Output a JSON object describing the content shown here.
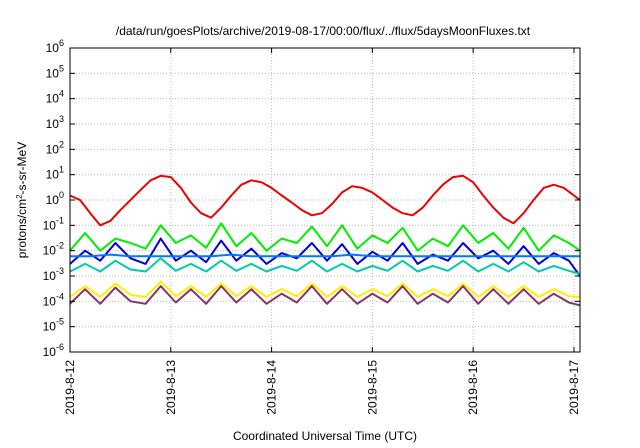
{
  "chart_data": {
    "type": "line",
    "title": "/data/run/goesPlots/archive/2019-08-17/00:00/flux/../flux/5daysMoonFluxes.txt",
    "xlabel": "Coordinated Universal Time (UTC)",
    "ylabel": {
      "prefix": "protons/cm",
      "sup": "2",
      "suffix": "-s-sr-MeV"
    },
    "yscale": "log",
    "ylim": [
      1e-06,
      1000000.0
    ],
    "xlim": [
      "2019-8-12",
      "2019-8-17"
    ],
    "grid": true,
    "x_ticks": [
      "2019-8-12",
      "2019-8-13",
      "2019-8-14",
      "2019-8-15",
      "2019-8-16",
      "2019-8-17"
    ],
    "y_ticks": [
      {
        "base": "10",
        "exp": "-6"
      },
      {
        "base": "10",
        "exp": "-5"
      },
      {
        "base": "10",
        "exp": "-4"
      },
      {
        "base": "10",
        "exp": "-3"
      },
      {
        "base": "10",
        "exp": "-2"
      },
      {
        "base": "10",
        "exp": "-1"
      },
      {
        "base": "10",
        "exp": "0"
      },
      {
        "base": "10",
        "exp": "1"
      },
      {
        "base": "10",
        "exp": "2"
      },
      {
        "base": "10",
        "exp": "3"
      },
      {
        "base": "10",
        "exp": "4"
      },
      {
        "base": "10",
        "exp": "5"
      },
      {
        "base": "10",
        "exp": "6"
      }
    ],
    "series": [
      {
        "color": "#00ee00",
        "x": [
          0.0,
          0.15,
          0.3,
          0.45,
          0.6,
          0.75,
          0.9,
          1.05,
          1.2,
          1.35,
          1.5,
          1.65,
          1.8,
          1.95,
          2.1,
          2.25,
          2.4,
          2.55,
          2.7,
          2.85,
          3.0,
          3.15,
          3.3,
          3.45,
          3.6,
          3.75,
          3.9,
          4.05,
          4.2,
          4.35,
          4.5,
          4.65,
          4.8,
          4.95,
          5.06
        ],
        "y": [
          0.01,
          0.05,
          0.01,
          0.03,
          0.02,
          0.012,
          0.1,
          0.02,
          0.04,
          0.013,
          0.12,
          0.015,
          0.05,
          0.01,
          0.03,
          0.02,
          0.09,
          0.015,
          0.1,
          0.012,
          0.04,
          0.02,
          0.08,
          0.01,
          0.03,
          0.015,
          0.1,
          0.02,
          0.05,
          0.012,
          0.08,
          0.01,
          0.04,
          0.02,
          0.01
        ]
      },
      {
        "color": "#0000dd",
        "x": [
          0.0,
          0.15,
          0.3,
          0.45,
          0.6,
          0.75,
          0.9,
          1.05,
          1.2,
          1.35,
          1.5,
          1.65,
          1.8,
          1.95,
          2.1,
          2.25,
          2.4,
          2.55,
          2.7,
          2.85,
          3.0,
          3.15,
          3.3,
          3.45,
          3.6,
          3.75,
          3.9,
          4.05,
          4.2,
          4.35,
          4.5,
          4.65,
          4.8,
          4.95,
          5.06
        ],
        "y": [
          0.003,
          0.01,
          0.004,
          0.02,
          0.005,
          0.003,
          0.03,
          0.004,
          0.01,
          0.0035,
          0.025,
          0.004,
          0.012,
          0.003,
          0.008,
          0.005,
          0.02,
          0.004,
          0.018,
          0.003,
          0.009,
          0.004,
          0.02,
          0.003,
          0.007,
          0.004,
          0.02,
          0.005,
          0.01,
          0.003,
          0.015,
          0.003,
          0.008,
          0.004,
          0.001
        ]
      },
      {
        "color": "#0077ff",
        "x": [
          0.0,
          0.2,
          0.4,
          0.6,
          0.8,
          1.0,
          1.2,
          1.4,
          1.6,
          1.8,
          2.0,
          2.2,
          2.4,
          2.6,
          2.8,
          3.0,
          3.2,
          3.4,
          3.6,
          3.8,
          4.0,
          4.2,
          4.4,
          4.6,
          4.8,
          5.06
        ],
        "y": [
          0.006,
          0.006,
          0.007,
          0.006,
          0.006,
          0.006,
          0.006,
          0.006,
          0.007,
          0.006,
          0.006,
          0.006,
          0.006,
          0.006,
          0.007,
          0.006,
          0.006,
          0.006,
          0.006,
          0.006,
          0.006,
          0.006,
          0.006,
          0.006,
          0.006,
          0.006
        ]
      },
      {
        "color": "#00ccaa",
        "x": [
          0.0,
          0.15,
          0.3,
          0.45,
          0.6,
          0.75,
          0.9,
          1.05,
          1.2,
          1.35,
          1.5,
          1.65,
          1.8,
          1.95,
          2.1,
          2.25,
          2.4,
          2.55,
          2.7,
          2.85,
          3.0,
          3.15,
          3.3,
          3.45,
          3.6,
          3.75,
          3.9,
          4.05,
          4.2,
          4.35,
          4.5,
          4.65,
          4.8,
          4.95,
          5.06
        ],
        "y": [
          0.0015,
          0.003,
          0.0015,
          0.004,
          0.0018,
          0.0015,
          0.005,
          0.0016,
          0.003,
          0.0015,
          0.004,
          0.0016,
          0.003,
          0.0015,
          0.0025,
          0.0016,
          0.004,
          0.0015,
          0.003,
          0.0015,
          0.0025,
          0.0016,
          0.004,
          0.0015,
          0.0025,
          0.0016,
          0.004,
          0.0015,
          0.003,
          0.0015,
          0.0035,
          0.0015,
          0.0025,
          0.0016,
          0.0012
        ]
      },
      {
        "color": "#ffee00",
        "x": [
          0.0,
          0.15,
          0.3,
          0.45,
          0.6,
          0.75,
          0.9,
          1.05,
          1.2,
          1.35,
          1.5,
          1.65,
          1.8,
          1.95,
          2.1,
          2.25,
          2.4,
          2.55,
          2.7,
          2.85,
          3.0,
          3.15,
          3.3,
          3.45,
          3.6,
          3.75,
          3.9,
          4.05,
          4.2,
          4.35,
          4.5,
          4.65,
          4.8,
          4.95,
          5.06
        ],
        "y": [
          0.00015,
          0.0004,
          0.00015,
          0.0005,
          0.00018,
          0.00015,
          0.0006,
          0.00016,
          0.0004,
          0.00015,
          0.0005,
          0.00016,
          0.0004,
          0.00015,
          0.0003,
          0.00016,
          0.0005,
          0.00015,
          0.0004,
          0.00015,
          0.0003,
          0.00016,
          0.0005,
          0.00015,
          0.0003,
          0.00016,
          0.0005,
          0.00015,
          0.0004,
          0.00015,
          0.0004,
          0.00015,
          0.0003,
          0.00016,
          0.00015
        ]
      },
      {
        "color": "#883366",
        "x": [
          0.0,
          0.15,
          0.3,
          0.45,
          0.6,
          0.75,
          0.9,
          1.05,
          1.2,
          1.35,
          1.5,
          1.65,
          1.8,
          1.95,
          2.1,
          2.25,
          2.4,
          2.55,
          2.7,
          2.85,
          3.0,
          3.15,
          3.3,
          3.45,
          3.6,
          3.75,
          3.9,
          4.05,
          4.2,
          4.35,
          4.5,
          4.65,
          4.8,
          4.95,
          5.06
        ],
        "y": [
          8e-05,
          0.0003,
          8e-05,
          0.00035,
          0.0001,
          8e-05,
          0.0004,
          9e-05,
          0.0003,
          8e-05,
          0.0004,
          9e-05,
          0.0003,
          8e-05,
          0.0002,
          9e-05,
          0.0004,
          8e-05,
          0.0003,
          8e-05,
          0.0002,
          9e-05,
          0.0004,
          8e-05,
          0.0002,
          9e-05,
          0.0004,
          8e-05,
          0.0003,
          8e-05,
          0.0003,
          8e-05,
          0.0002,
          9e-05,
          7e-05
        ]
      },
      {
        "color": "#ee0000",
        "x": [
          0.0,
          0.1,
          0.2,
          0.3,
          0.4,
          0.5,
          0.6,
          0.7,
          0.8,
          0.9,
          1.0,
          1.1,
          1.2,
          1.3,
          1.4,
          1.5,
          1.6,
          1.7,
          1.8,
          1.9,
          2.0,
          2.1,
          2.2,
          2.3,
          2.4,
          2.5,
          2.6,
          2.7,
          2.8,
          2.9,
          3.0,
          3.1,
          3.2,
          3.3,
          3.4,
          3.5,
          3.6,
          3.7,
          3.8,
          3.9,
          4.0,
          4.1,
          4.2,
          4.3,
          4.4,
          4.5,
          4.6,
          4.7,
          4.8,
          4.9,
          5.0,
          5.06
        ],
        "y": [
          1.5,
          1.0,
          0.3,
          0.1,
          0.15,
          0.4,
          1.0,
          2.5,
          6,
          9,
          8,
          3,
          0.8,
          0.3,
          0.2,
          0.5,
          1.5,
          4,
          6,
          5,
          3,
          1.5,
          0.8,
          0.4,
          0.25,
          0.3,
          0.7,
          2,
          3.5,
          3,
          2,
          1,
          0.5,
          0.3,
          0.25,
          0.5,
          1.5,
          4,
          8,
          9,
          5,
          1.5,
          0.5,
          0.2,
          0.12,
          0.3,
          1,
          3,
          4,
          3,
          1.5,
          1.0
        ]
      }
    ]
  }
}
